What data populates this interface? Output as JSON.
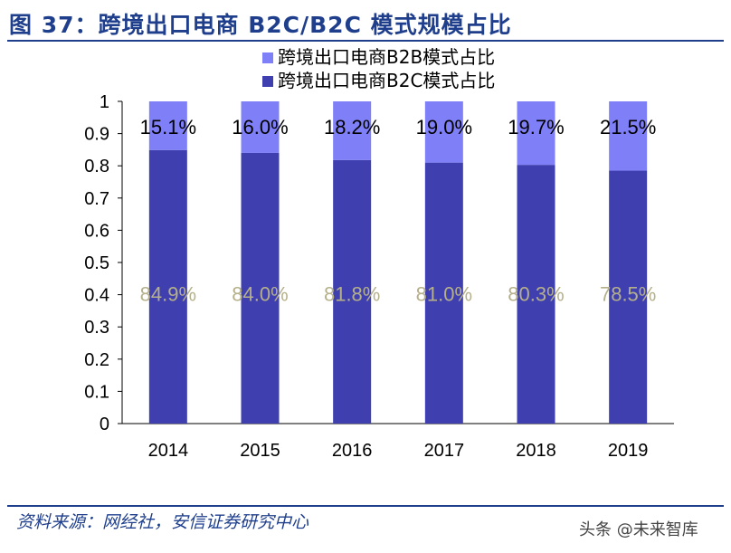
{
  "title": "图 37：跨境出口电商 B2C/B2C 模式规模占比",
  "source": "资料来源：网经社，安信证券研究中心",
  "watermark": "头条 @未来智库",
  "colors": {
    "title": "#1f3e8c",
    "b2b": "#7f7ff7",
    "b2c": "#3f3fb0",
    "b2c_label": "#b5b08a",
    "axis_text": "#000000"
  },
  "chart_data": {
    "type": "bar",
    "stacked": true,
    "categories": [
      "2014",
      "2015",
      "2016",
      "2017",
      "2018",
      "2019"
    ],
    "series": [
      {
        "name": "跨境出口电商B2C模式占比",
        "values": [
          0.849,
          0.84,
          0.818,
          0.81,
          0.803,
          0.785
        ],
        "labels": [
          "84.9%",
          "84.0%",
          "81.8%",
          "81.0%",
          "80.3%",
          "78.5%"
        ]
      },
      {
        "name": "跨境出口电商B2B模式占比",
        "values": [
          0.151,
          0.16,
          0.182,
          0.19,
          0.197,
          0.215
        ],
        "labels": [
          "15.1%",
          "16.0%",
          "18.2%",
          "19.0%",
          "19.7%",
          "21.5%"
        ]
      }
    ],
    "legend": [
      "跨境出口电商B2B模式占比",
      "跨境出口电商B2C模式占比"
    ],
    "yticks": [
      "0",
      "0.1",
      "0.2",
      "0.3",
      "0.4",
      "0.5",
      "0.6",
      "0.7",
      "0.8",
      "0.9",
      "1"
    ],
    "ylim": [
      0,
      1
    ],
    "legend_position": "top"
  }
}
